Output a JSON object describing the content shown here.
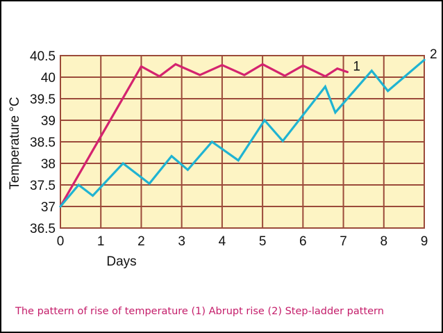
{
  "caption": "The pattern of rise of temperature (1) Abrupt rise (2) Step-ladder pattern",
  "colors": {
    "plot_background": "#fdf4c4",
    "grid": "#9b4a3a",
    "series_1": "#d4236f",
    "series_2": "#1fb3d2",
    "text": "#111111",
    "caption": "#c41d6a"
  },
  "chart_data": {
    "type": "line",
    "title": "",
    "xlabel": "Days",
    "ylabel": "Temperature °C",
    "xlim": [
      0,
      9
    ],
    "ylim": [
      36.5,
      40.5
    ],
    "x_ticks": [
      "0",
      "1",
      "2",
      "3",
      "4",
      "5",
      "6",
      "7",
      "8",
      "9"
    ],
    "y_ticks": [
      "36.5",
      "37",
      "37.5",
      "38",
      "38.5",
      "39",
      "39.5",
      "40",
      "40.5"
    ],
    "grid": true,
    "series": [
      {
        "label": "1",
        "points": [
          [
            0,
            37
          ],
          [
            2,
            40.25
          ],
          [
            2.45,
            40.02
          ],
          [
            2.85,
            40.3
          ],
          [
            3.45,
            40.05
          ],
          [
            4.0,
            40.28
          ],
          [
            4.55,
            40.05
          ],
          [
            5.0,
            40.3
          ],
          [
            5.55,
            40.03
          ],
          [
            6.0,
            40.27
          ],
          [
            6.55,
            40.02
          ],
          [
            6.85,
            40.2
          ],
          [
            7.1,
            40.12
          ]
        ]
      },
      {
        "label": "2",
        "points": [
          [
            0,
            37
          ],
          [
            0.45,
            37.5
          ],
          [
            0.8,
            37.25
          ],
          [
            1.55,
            38.0
          ],
          [
            2.2,
            37.53
          ],
          [
            2.75,
            38.17
          ],
          [
            3.15,
            37.85
          ],
          [
            3.75,
            38.5
          ],
          [
            4.4,
            38.07
          ],
          [
            5.05,
            39.0
          ],
          [
            5.5,
            38.52
          ],
          [
            6.55,
            39.78
          ],
          [
            6.8,
            39.18
          ],
          [
            7.7,
            40.15
          ],
          [
            8.1,
            39.68
          ],
          [
            9.0,
            40.4
          ]
        ]
      }
    ]
  }
}
